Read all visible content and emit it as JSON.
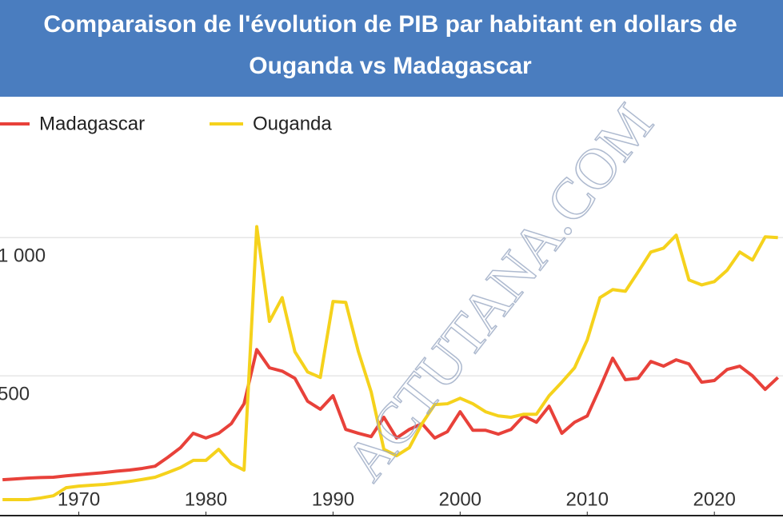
{
  "chart_data": {
    "type": "line",
    "title": "Comparaison de l'évolution de PIB par habitant en dollars de",
    "subtitle": "Ouganda vs Madagascar",
    "annotation": "ACTUTANA.COM",
    "x": [
      1964,
      1965,
      1966,
      1967,
      1968,
      1969,
      1970,
      1971,
      1972,
      1973,
      1974,
      1975,
      1976,
      1977,
      1978,
      1979,
      1980,
      1981,
      1982,
      1983,
      1984,
      1985,
      1986,
      1987,
      1988,
      1989,
      1990,
      1991,
      1992,
      1993,
      1994,
      1995,
      1996,
      1997,
      1998,
      1999,
      2000,
      2001,
      2002,
      2003,
      2004,
      2005,
      2006,
      2007,
      2008,
      2009,
      2010,
      2011,
      2012,
      2013,
      2014,
      2015,
      2016,
      2017,
      2018,
      2019,
      2020,
      2021,
      2022,
      2023,
      2024,
      2025
    ],
    "series": [
      {
        "name": "Madagascar",
        "color": "#e8413a",
        "values": [
          124,
          127,
          130,
          132,
          133,
          138,
          142,
          146,
          150,
          155,
          159,
          165,
          173,
          205,
          240,
          292,
          275,
          292,
          327,
          399,
          595,
          529,
          517,
          491,
          408,
          379,
          428,
          306,
          292,
          280,
          350,
          275,
          306,
          327,
          275,
          298,
          370,
          303,
          303,
          289,
          306,
          355,
          332,
          390,
          292,
          332,
          355,
          457,
          564,
          486,
          491,
          552,
          535,
          558,
          543,
          477,
          483,
          523,
          535,
          500,
          451,
          494
        ]
      },
      {
        "name": "Ouganda",
        "color": "#f5d21c",
        "values": [
          52,
          52,
          52,
          58,
          66,
          95,
          101,
          104,
          107,
          112,
          118,
          125,
          133,
          150,
          168,
          194,
          194,
          234,
          182,
          159,
          1040,
          697,
          783,
          587,
          514,
          494,
          769,
          766,
          587,
          442,
          234,
          211,
          240,
          327,
          396,
          399,
          419,
          399,
          370,
          355,
          350,
          361,
          361,
          428,
          477,
          529,
          630,
          783,
          812,
          806,
          876,
          948,
          962,
          1009,
          847,
          829,
          841,
          882,
          948,
          919,
          1003,
          1000
        ]
      }
    ],
    "xlim": [
      1963.8,
      2025.4
    ],
    "xticks": [
      1970,
      1980,
      1990,
      2000,
      2010,
      2020
    ],
    "ylim": [
      0,
      1860
    ],
    "yticks": [
      500,
      {
        "value": 1000,
        "label": "1 000"
      }
    ],
    "grid": true
  }
}
